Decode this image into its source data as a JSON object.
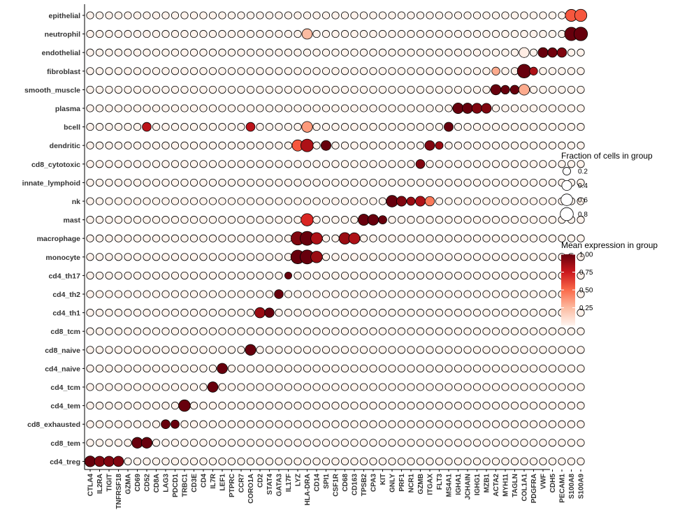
{
  "chart_data": {
    "type": "dotplot",
    "genes": [
      "CTLA4",
      "IL2RA",
      "TIGIT",
      "TNFRSF18",
      "GZMA",
      "CD69",
      "CD52",
      "CD8A",
      "LAG3",
      "PDCD1",
      "TRBC1",
      "CD3E",
      "CD4",
      "IL7R",
      "LEF1",
      "PTPRC",
      "CCR7",
      "CORO1A",
      "CD2",
      "STAT4",
      "GATA3",
      "IL17F",
      "LYZ",
      "HLA-DRA",
      "CD14",
      "SPI1",
      "CSF1R",
      "CD68",
      "CD163",
      "TPSB2",
      "CPA3",
      "KIT",
      "GNLY",
      "PRF1",
      "NCR1",
      "GZMB",
      "ITGAX",
      "FLT3",
      "MS4A1",
      "IGHA1",
      "JCHAIN",
      "IGHG1",
      "MZB1",
      "ACTA2",
      "MYH11",
      "TAGLN",
      "COL1A1",
      "PDGFRA",
      "VWF",
      "CDH5",
      "PECAM1",
      "S100A8",
      "S100A9"
    ],
    "cell_types": [
      "epithelial",
      "neutrophil",
      "endothelial",
      "fibroblast",
      "smooth_muscle",
      "plasma",
      "bcell",
      "dendritic",
      "cd8_cytotoxic",
      "innate_lymphoid",
      "nk",
      "mast",
      "macrophage",
      "monocyte",
      "cd4_th17",
      "cd4_th2",
      "cd4_th1",
      "cd8_tcm",
      "cd8_naive",
      "cd4_naive",
      "cd4_tcm",
      "cd4_tem",
      "cd8_exhausted",
      "cd8_tem",
      "cd4_treg"
    ],
    "size_legend": {
      "title": "Fraction of cells in group",
      "values": [
        0.2,
        0.4,
        0.6,
        0.8
      ],
      "labels": [
        "0.2",
        "0.4",
        "0.6",
        "0.8"
      ]
    },
    "color_legend": {
      "title": "Mean expression in group",
      "range": [
        0,
        1
      ],
      "ticks": [
        0.25,
        0.5,
        0.75,
        1.0
      ],
      "labels": [
        "0.25",
        "0.50",
        "0.75",
        "1.00"
      ],
      "low_color": "#fff5f0",
      "high_color": "#67000d"
    },
    "highlights": [
      {
        "cell": "epithelial",
        "gene": "S100A8",
        "fraction": 0.65,
        "expression": 0.55
      },
      {
        "cell": "epithelial",
        "gene": "S100A9",
        "fraction": 0.68,
        "expression": 0.55
      },
      {
        "cell": "neutrophil",
        "gene": "S100A8",
        "fraction": 0.85,
        "expression": 1.0
      },
      {
        "cell": "neutrophil",
        "gene": "S100A9",
        "fraction": 0.88,
        "expression": 1.0
      },
      {
        "cell": "neutrophil",
        "gene": "HLA-DRA",
        "fraction": 0.45,
        "expression": 0.25
      },
      {
        "cell": "endothelial",
        "gene": "VWF",
        "fraction": 0.4,
        "expression": 1.0
      },
      {
        "cell": "endothelial",
        "gene": "CDH5",
        "fraction": 0.35,
        "expression": 0.98
      },
      {
        "cell": "endothelial",
        "gene": "PECAM1",
        "fraction": 0.35,
        "expression": 0.95
      },
      {
        "cell": "endothelial",
        "gene": "COL1A1",
        "fraction": 0.4,
        "expression": 0.05
      },
      {
        "cell": "fibroblast",
        "gene": "COL1A1",
        "fraction": 0.9,
        "expression": 1.0
      },
      {
        "cell": "fibroblast",
        "gene": "PDGFRA",
        "fraction": 0.22,
        "expression": 0.85
      },
      {
        "cell": "fibroblast",
        "gene": "ACTA2",
        "fraction": 0.22,
        "expression": 0.3
      },
      {
        "cell": "smooth_muscle",
        "gene": "ACTA2",
        "fraction": 0.45,
        "expression": 1.0
      },
      {
        "cell": "smooth_muscle",
        "gene": "MYH11",
        "fraction": 0.28,
        "expression": 1.0
      },
      {
        "cell": "smooth_muscle",
        "gene": "TAGLN",
        "fraction": 0.3,
        "expression": 1.0
      },
      {
        "cell": "smooth_muscle",
        "gene": "COL1A1",
        "fraction": 0.5,
        "expression": 0.3
      },
      {
        "cell": "plasma",
        "gene": "IGHA1",
        "fraction": 0.48,
        "expression": 1.0
      },
      {
        "cell": "plasma",
        "gene": "JCHAIN",
        "fraction": 0.45,
        "expression": 1.0
      },
      {
        "cell": "plasma",
        "gene": "IGHG1",
        "fraction": 0.42,
        "expression": 0.95
      },
      {
        "cell": "plasma",
        "gene": "MZB1",
        "fraction": 0.4,
        "expression": 0.95
      },
      {
        "cell": "bcell",
        "gene": "MS4A1",
        "fraction": 0.32,
        "expression": 1.0
      },
      {
        "cell": "bcell",
        "gene": "CD52",
        "fraction": 0.3,
        "expression": 0.8
      },
      {
        "cell": "bcell",
        "gene": "CORO1A",
        "fraction": 0.3,
        "expression": 0.8
      },
      {
        "cell": "bcell",
        "gene": "HLA-DRA",
        "fraction": 0.5,
        "expression": 0.35
      },
      {
        "cell": "dendritic",
        "gene": "HLA-DRA",
        "fraction": 0.75,
        "expression": 0.85
      },
      {
        "cell": "dendritic",
        "gene": "SPI1",
        "fraction": 0.4,
        "expression": 1.0
      },
      {
        "cell": "dendritic",
        "gene": "ITGAX",
        "fraction": 0.38,
        "expression": 0.95
      },
      {
        "cell": "dendritic",
        "gene": "LYZ",
        "fraction": 0.55,
        "expression": 0.55
      },
      {
        "cell": "dendritic",
        "gene": "FLT3",
        "fraction": 0.2,
        "expression": 0.9
      },
      {
        "cell": "cd8_cytotoxic",
        "gene": "GZMB",
        "fraction": 0.3,
        "expression": 0.95
      },
      {
        "cell": "nk",
        "gene": "GNLY",
        "fraction": 0.6,
        "expression": 1.0
      },
      {
        "cell": "nk",
        "gene": "PRF1",
        "fraction": 0.4,
        "expression": 0.95
      },
      {
        "cell": "nk",
        "gene": "NCR1",
        "fraction": 0.25,
        "expression": 0.9
      },
      {
        "cell": "nk",
        "gene": "GZMB",
        "fraction": 0.4,
        "expression": 0.85
      },
      {
        "cell": "nk",
        "gene": "ITGAX",
        "fraction": 0.35,
        "expression": 0.45
      },
      {
        "cell": "mast",
        "gene": "TPSB2",
        "fraction": 0.55,
        "expression": 1.0
      },
      {
        "cell": "mast",
        "gene": "CPA3",
        "fraction": 0.5,
        "expression": 1.0
      },
      {
        "cell": "mast",
        "gene": "KIT",
        "fraction": 0.25,
        "expression": 1.0
      },
      {
        "cell": "mast",
        "gene": "HLA-DRA",
        "fraction": 0.7,
        "expression": 0.7
      },
      {
        "cell": "macrophage",
        "gene": "LYZ",
        "fraction": 0.85,
        "expression": 0.95
      },
      {
        "cell": "macrophage",
        "gene": "HLA-DRA",
        "fraction": 0.95,
        "expression": 1.0
      },
      {
        "cell": "macrophage",
        "gene": "CD14",
        "fraction": 0.6,
        "expression": 0.85
      },
      {
        "cell": "macrophage",
        "gene": "CD68",
        "fraction": 0.6,
        "expression": 0.9
      },
      {
        "cell": "macrophage",
        "gene": "CD163",
        "fraction": 0.55,
        "expression": 0.85
      },
      {
        "cell": "monocyte",
        "gene": "LYZ",
        "fraction": 0.9,
        "expression": 1.0
      },
      {
        "cell": "monocyte",
        "gene": "HLA-DRA",
        "fraction": 0.95,
        "expression": 1.0
      },
      {
        "cell": "monocyte",
        "gene": "CD14",
        "fraction": 0.6,
        "expression": 0.9
      },
      {
        "cell": "cd4_th1",
        "gene": "CD2",
        "fraction": 0.45,
        "expression": 0.9
      },
      {
        "cell": "cd4_th1",
        "gene": "STAT4",
        "fraction": 0.35,
        "expression": 1.0
      },
      {
        "cell": "cd4_th2",
        "gene": "GATA3",
        "fraction": 0.3,
        "expression": 1.0
      },
      {
        "cell": "cd4_th17",
        "gene": "IL17F",
        "fraction": 0.15,
        "expression": 1.0
      },
      {
        "cell": "cd8_naive",
        "gene": "CORO1A",
        "fraction": 0.5,
        "expression": 1.0
      },
      {
        "cell": "cd4_naive",
        "gene": "LEF1",
        "fraction": 0.45,
        "expression": 1.0
      },
      {
        "cell": "cd4_tcm",
        "gene": "IL7R",
        "fraction": 0.45,
        "expression": 1.0
      },
      {
        "cell": "cd4_tem",
        "gene": "TRBC1",
        "fraction": 0.6,
        "expression": 1.0
      },
      {
        "cell": "cd8_exhausted",
        "gene": "LAG3",
        "fraction": 0.3,
        "expression": 1.0
      },
      {
        "cell": "cd8_exhausted",
        "gene": "PDCD1",
        "fraction": 0.25,
        "expression": 1.0
      },
      {
        "cell": "cd8_tem",
        "gene": "CD69",
        "fraction": 0.5,
        "expression": 1.0
      },
      {
        "cell": "cd8_tem",
        "gene": "CD52",
        "fraction": 0.5,
        "expression": 1.0
      },
      {
        "cell": "cd4_treg",
        "gene": "CTLA4",
        "fraction": 0.5,
        "expression": 1.0
      },
      {
        "cell": "cd4_treg",
        "gene": "IL2RA",
        "fraction": 0.45,
        "expression": 0.95
      },
      {
        "cell": "cd4_treg",
        "gene": "TIGIT",
        "fraction": 0.45,
        "expression": 0.95
      },
      {
        "cell": "cd4_treg",
        "gene": "TNFRSF18",
        "fraction": 0.45,
        "expression": 0.95
      }
    ],
    "legend_position": "right"
  }
}
